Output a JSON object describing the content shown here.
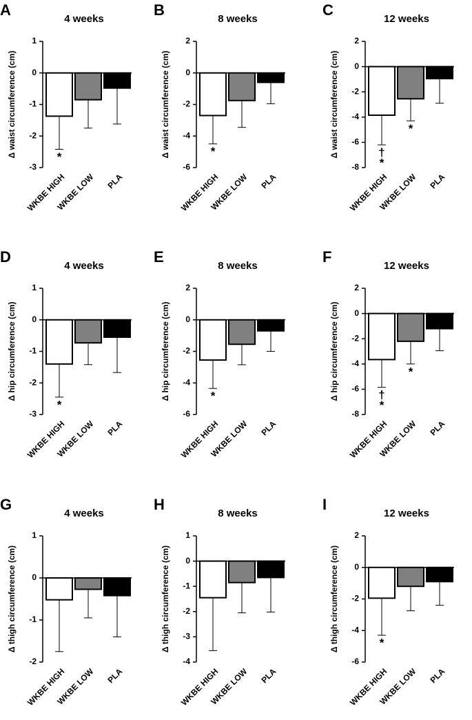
{
  "chart_data": [
    {
      "type": "bar",
      "panel": "A",
      "title": "4 weeks",
      "ylabel": "Δ waist circumference (cm)",
      "categories": [
        "WKBE HIGH",
        "WKBE LOW",
        "PLA"
      ],
      "values": [
        -1.37,
        -0.85,
        -0.48
      ],
      "errors": [
        1.05,
        0.9,
        1.14
      ],
      "colors": [
        "#ffffff",
        "#808080",
        "#000000"
      ],
      "ylim": [
        -3,
        1
      ],
      "yticks": [
        -3,
        -2,
        -1,
        0,
        1
      ],
      "annotations": [
        [
          "*"
        ],
        [],
        []
      ]
    },
    {
      "type": "bar",
      "panel": "B",
      "title": "8 weeks",
      "ylabel": "Δ waist circumference (cm)",
      "categories": [
        "WKBE HIGH",
        "WKBE LOW",
        "PLA"
      ],
      "values": [
        -2.7,
        -1.75,
        -0.6
      ],
      "errors": [
        1.8,
        1.7,
        1.35
      ],
      "colors": [
        "#ffffff",
        "#808080",
        "#000000"
      ],
      "ylim": [
        -6,
        2
      ],
      "yticks": [
        -6,
        -4,
        -2,
        0,
        2
      ],
      "annotations": [
        [
          "*"
        ],
        [],
        []
      ]
    },
    {
      "type": "bar",
      "panel": "C",
      "title": "12 weeks",
      "ylabel": "Δ waist circumference (cm)",
      "categories": [
        "WKBE HIGH",
        "WKBE LOW",
        "PLA"
      ],
      "values": [
        -3.85,
        -2.55,
        -0.95
      ],
      "errors": [
        2.35,
        1.75,
        1.95
      ],
      "colors": [
        "#ffffff",
        "#808080",
        "#000000"
      ],
      "ylim": [
        -8,
        2
      ],
      "yticks": [
        -8,
        -6,
        -4,
        -2,
        0,
        2
      ],
      "annotations": [
        [
          "†",
          "*"
        ],
        [
          "*"
        ],
        []
      ]
    },
    {
      "type": "bar",
      "panel": "D",
      "title": "4 weeks",
      "ylabel": "Δ hip circumference (cm)",
      "categories": [
        "WKBE HIGH",
        "WKBE LOW",
        "PLA"
      ],
      "values": [
        -1.4,
        -0.73,
        -0.55
      ],
      "errors": [
        1.05,
        0.69,
        1.12
      ],
      "colors": [
        "#ffffff",
        "#808080",
        "#000000"
      ],
      "ylim": [
        -3,
        1
      ],
      "yticks": [
        -3,
        -2,
        -1,
        0,
        1
      ],
      "annotations": [
        [
          "*"
        ],
        [],
        []
      ]
    },
    {
      "type": "bar",
      "panel": "E",
      "title": "8 weeks",
      "ylabel": "Δ hip circumference (cm)",
      "categories": [
        "WKBE HIGH",
        "WKBE LOW",
        "PLA"
      ],
      "values": [
        -2.55,
        -1.55,
        -0.7
      ],
      "errors": [
        1.8,
        1.3,
        1.3
      ],
      "colors": [
        "#ffffff",
        "#808080",
        "#000000"
      ],
      "ylim": [
        -6,
        2
      ],
      "yticks": [
        -6,
        -4,
        -2,
        0,
        2
      ],
      "annotations": [
        [
          "*"
        ],
        [],
        []
      ]
    },
    {
      "type": "bar",
      "panel": "F",
      "title": "12 weeks",
      "ylabel": "Δ hip circumference (cm)",
      "categories": [
        "WKBE HIGH",
        "WKBE LOW",
        "PLA"
      ],
      "values": [
        -3.65,
        -2.2,
        -1.2
      ],
      "errors": [
        2.2,
        1.8,
        1.75
      ],
      "colors": [
        "#ffffff",
        "#808080",
        "#000000"
      ],
      "ylim": [
        -8,
        2
      ],
      "yticks": [
        -8,
        -6,
        -4,
        -2,
        0,
        2
      ],
      "annotations": [
        [
          "†",
          "*"
        ],
        [
          "*"
        ],
        []
      ]
    },
    {
      "type": "bar",
      "panel": "G",
      "title": "4 weeks",
      "ylabel": "Δ thigh circumference (cm)",
      "categories": [
        "WKBE HIGH",
        "WKBE LOW",
        "PLA"
      ],
      "values": [
        -0.52,
        -0.27,
        -0.42
      ],
      "errors": [
        1.23,
        0.68,
        0.98
      ],
      "colors": [
        "#ffffff",
        "#808080",
        "#000000"
      ],
      "ylim": [
        -2,
        1
      ],
      "yticks": [
        -2,
        -1,
        0,
        1
      ],
      "annotations": [
        [],
        [],
        []
      ]
    },
    {
      "type": "bar",
      "panel": "H",
      "title": "8 weeks",
      "ylabel": "Δ thigh circumference (cm)",
      "categories": [
        "WKBE HIGH",
        "WKBE LOW",
        "PLA"
      ],
      "values": [
        -1.45,
        -0.85,
        -0.65
      ],
      "errors": [
        2.1,
        1.2,
        1.37
      ],
      "colors": [
        "#ffffff",
        "#808080",
        "#000000"
      ],
      "ylim": [
        -4,
        1
      ],
      "yticks": [
        -4,
        -3,
        -2,
        -1,
        0,
        1
      ],
      "annotations": [
        [],
        [],
        []
      ]
    },
    {
      "type": "bar",
      "panel": "I",
      "title": "12 weeks",
      "ylabel": "Δ thigh circumference (cm)",
      "categories": [
        "WKBE HIGH",
        "WKBE LOW",
        "PLA"
      ],
      "values": [
        -1.95,
        -1.2,
        -0.9
      ],
      "errors": [
        2.35,
        1.55,
        1.5
      ],
      "colors": [
        "#ffffff",
        "#808080",
        "#000000"
      ],
      "ylim": [
        -6,
        2
      ],
      "yticks": [
        -6,
        -4,
        -2,
        0,
        2
      ],
      "annotations": [
        [
          "*"
        ],
        [],
        []
      ]
    }
  ]
}
